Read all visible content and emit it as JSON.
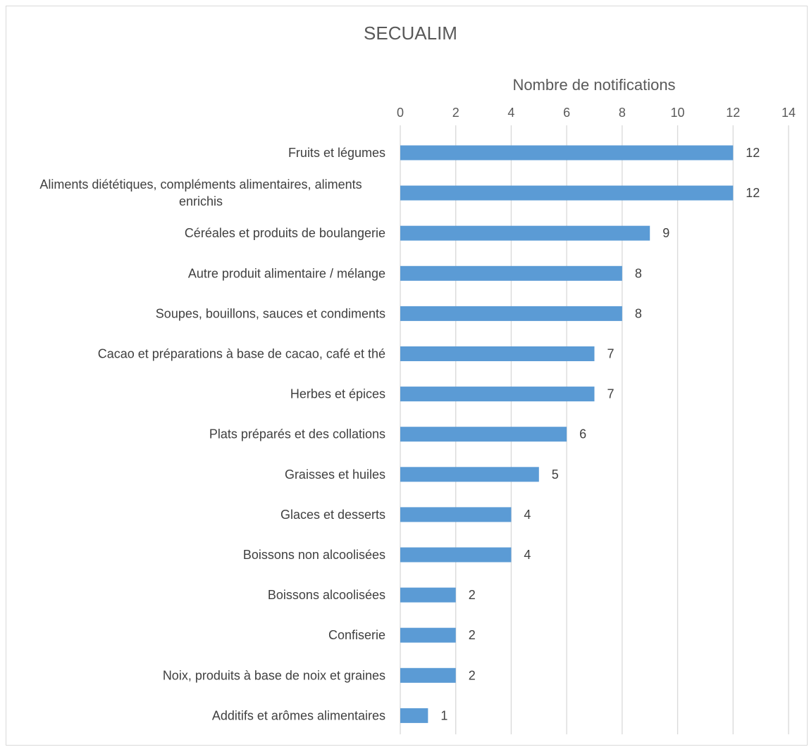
{
  "chart_data": {
    "type": "bar",
    "orientation": "horizontal",
    "title": "SECUALIM",
    "xlabel": "Nombre de notifications",
    "ylabel": "",
    "xlim": [
      0,
      14
    ],
    "x_ticks": [
      0,
      2,
      4,
      6,
      8,
      10,
      12,
      14
    ],
    "x_axis_position": "top",
    "grid": true,
    "legend": "none",
    "data_labels": true,
    "bar_color": "#5b9bd5",
    "categories": [
      [
        "Fruits et légumes"
      ],
      [
        "Aliments diététiques, compléments alimentaires, aliments",
        "enrichis"
      ],
      [
        "Céréales et produits de boulangerie"
      ],
      [
        "Autre produit alimentaire / mélange"
      ],
      [
        "Soupes, bouillons, sauces et condiments"
      ],
      [
        "Cacao et préparations à base de cacao, café et thé"
      ],
      [
        "Herbes et épices"
      ],
      [
        "Plats préparés et des collations"
      ],
      [
        "Graisses et huiles"
      ],
      [
        "Glaces et desserts"
      ],
      [
        "Boissons non alcoolisées"
      ],
      [
        "Boissons alcoolisées"
      ],
      [
        "Confiserie"
      ],
      [
        "Noix, produits à base de noix et graines"
      ],
      [
        "Additifs et arômes alimentaires"
      ]
    ],
    "values": [
      12,
      12,
      9,
      8,
      8,
      7,
      7,
      6,
      5,
      4,
      4,
      2,
      2,
      2,
      1
    ]
  }
}
